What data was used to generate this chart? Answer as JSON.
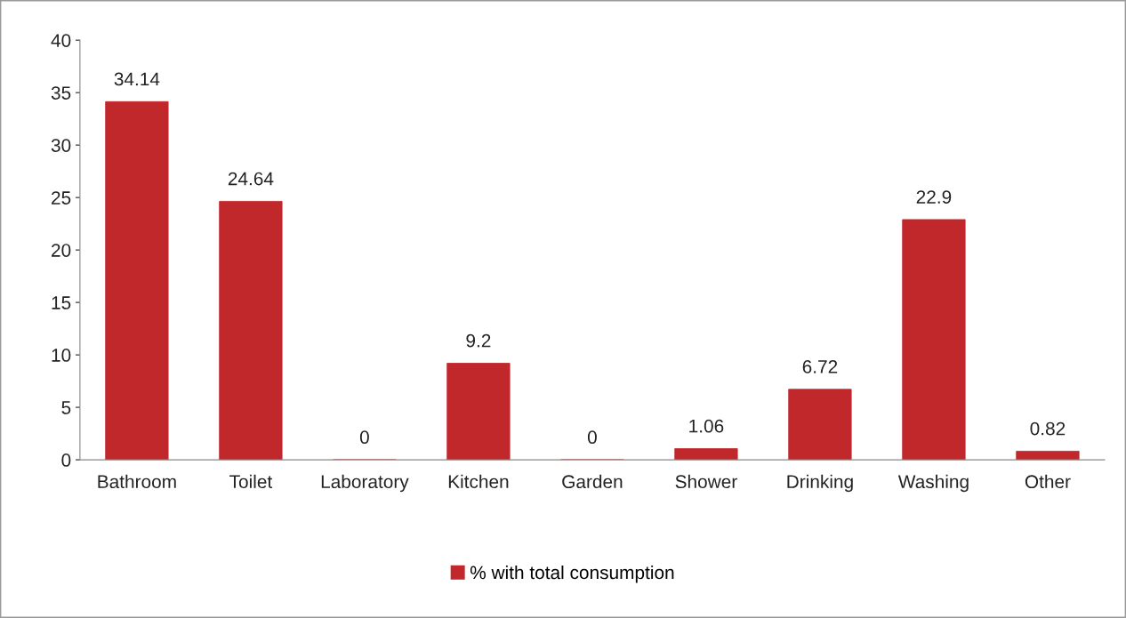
{
  "chart_data": {
    "type": "bar",
    "categories": [
      "Bathroom",
      "Toilet",
      "Laboratory",
      "Kitchen",
      "Garden",
      "Shower",
      "Drinking",
      "Washing",
      "Other"
    ],
    "series": [
      {
        "name": "% with total consumption",
        "color": "#c0282c",
        "values": [
          34.14,
          24.64,
          0,
          9.2,
          0,
          1.06,
          6.72,
          22.9,
          0.82
        ]
      }
    ],
    "ylim": [
      0,
      40
    ],
    "yticks": [
      0,
      5,
      10,
      15,
      20,
      25,
      30,
      35,
      40
    ],
    "data_labels": true,
    "grid": false,
    "legend": "bottom"
  }
}
